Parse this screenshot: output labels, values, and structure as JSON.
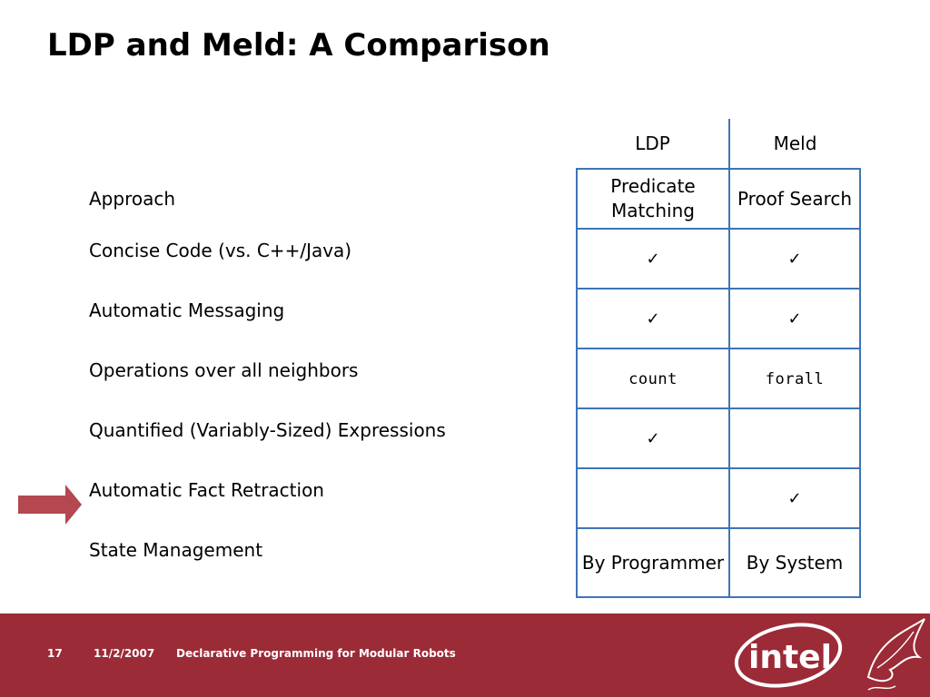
{
  "title": "LDP and Meld: A Comparison",
  "table": {
    "columns": [
      "LDP",
      "Meld"
    ],
    "check_glyph": "✓",
    "rows": [
      {
        "label": "Approach",
        "ldp": "Predicate Matching",
        "meld": "Proof Search"
      },
      {
        "label": "Concise Code (vs. C++/Java)",
        "ldp_check": true,
        "meld_check": true
      },
      {
        "label": "Automatic Messaging",
        "ldp_check": true,
        "meld_check": true
      },
      {
        "label": "Operations over all neighbors",
        "ldp": "count",
        "meld": "forall"
      },
      {
        "label": "Quantified (Variably-Sized) Expressions",
        "ldp_check": true,
        "meld_check": false
      },
      {
        "label": "Automatic Fact Retraction",
        "ldp_check": false,
        "meld_check": true
      },
      {
        "label": "State Management",
        "ldp": "By Programmer",
        "meld": "By System"
      }
    ]
  },
  "footer": {
    "slide_number": "17",
    "date": "11/2/2007",
    "title": "Declarative Programming for Modular Robots",
    "logo_text": "intel"
  },
  "colors": {
    "footer_bg": "#9b2b37",
    "table_border": "#3f74b4",
    "arrow": "#b4474f"
  }
}
